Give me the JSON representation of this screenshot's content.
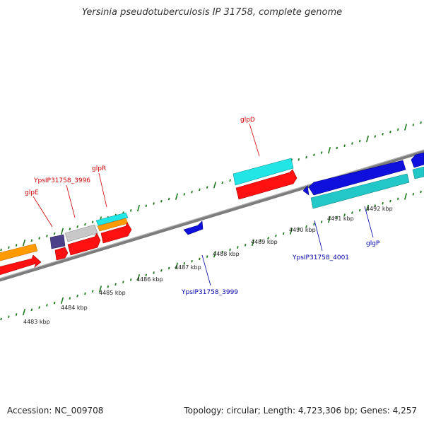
{
  "header": {
    "title": "Yersinia pseudotuberculosis IP 31758, complete genome"
  },
  "footer": {
    "accession": "Accession: NC_009708",
    "topology": "Topology: circular; Length: 4,723,306 bp; Genes: 4,257"
  },
  "scale": {
    "labels": [
      "4483 kbp",
      "4484 kbp",
      "4485 kbp",
      "4486 kbp",
      "4487 kbp",
      "4488 kbp",
      "4489 kbp",
      "4490 kbp",
      "4491 kbp",
      "4492 kbp"
    ]
  },
  "genes": {
    "labels_top": [
      "glpE",
      "YpsIP31758_3996",
      "glpR",
      "glpD"
    ],
    "labels_bottom": [
      "YpsIP31758_3999",
      "YpsIP31758_4001",
      "glgP"
    ]
  },
  "colors": {
    "top_label": "#cc0000",
    "bottom_label": "#0000aa",
    "tick": "#1f7a1f",
    "backbone": "#888888",
    "red": "#ff1010",
    "orange": "#ff9900",
    "cyan": "#22e5e5",
    "teal": "#22c7c7",
    "blue": "#1010dd",
    "purple": "#4b3f8a",
    "gray": "#c0c0c0"
  }
}
